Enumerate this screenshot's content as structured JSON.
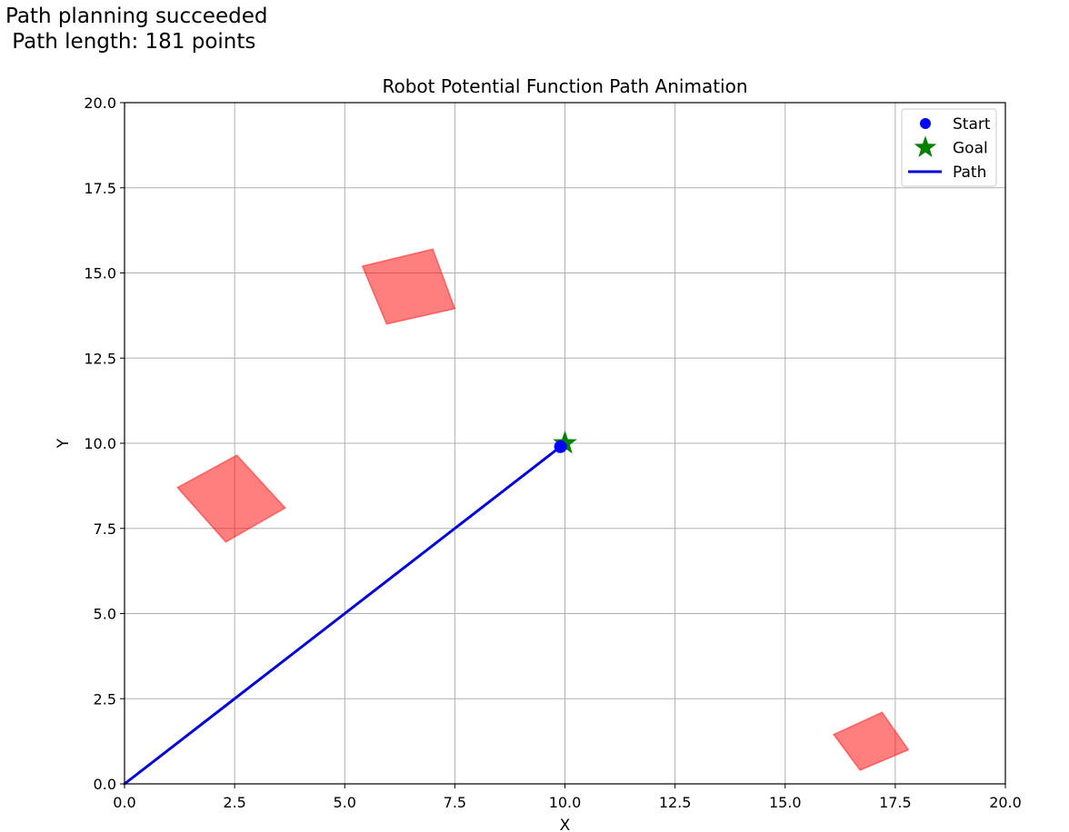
{
  "status": {
    "line1": "Path planning succeeded",
    "line2": " Path length: 181 points"
  },
  "chart_data": {
    "type": "line",
    "title": "Robot Potential Function Path Animation",
    "xlabel": "X",
    "ylabel": "Y",
    "xlim": [
      0,
      20
    ],
    "ylim": [
      0,
      20
    ],
    "xticks": [
      "0.0",
      "2.5",
      "5.0",
      "7.5",
      "10.0",
      "12.5",
      "15.0",
      "17.5",
      "20.0"
    ],
    "yticks": [
      "0.0",
      "2.5",
      "5.0",
      "7.5",
      "10.0",
      "12.5",
      "15.0",
      "17.5",
      "20.0"
    ],
    "grid": true,
    "legend_position": "top-right",
    "legend": [
      {
        "label": "Start",
        "marker": "circle",
        "color": "#0000ff"
      },
      {
        "label": "Goal",
        "marker": "star",
        "color": "#008000"
      },
      {
        "label": "Path",
        "marker": "line",
        "color": "#0000dd"
      }
    ],
    "start": [
      9.9,
      9.9
    ],
    "goal": [
      10.0,
      10.0
    ],
    "path": {
      "name": "Path",
      "x": [
        0.0,
        2.5,
        5.0,
        7.5,
        9.9
      ],
      "y": [
        0.0,
        2.5,
        5.0,
        7.5,
        9.9
      ]
    },
    "obstacles": [
      {
        "vertices": [
          [
            5.4,
            15.2
          ],
          [
            7.0,
            15.7
          ],
          [
            7.5,
            13.95
          ],
          [
            5.95,
            13.5
          ]
        ]
      },
      {
        "vertices": [
          [
            1.2,
            8.7
          ],
          [
            2.55,
            9.65
          ],
          [
            3.65,
            8.1
          ],
          [
            2.3,
            7.1
          ]
        ]
      },
      {
        "vertices": [
          [
            16.1,
            1.45
          ],
          [
            17.2,
            2.1
          ],
          [
            17.8,
            1.0
          ],
          [
            16.7,
            0.4
          ]
        ]
      }
    ],
    "colors": {
      "obstacle_fill": "#ff0000",
      "obstacle_opacity": 0.5,
      "path": "#0000dd",
      "start": "#0000ff",
      "goal": "#008000",
      "grid": "#b0b0b0"
    }
  }
}
